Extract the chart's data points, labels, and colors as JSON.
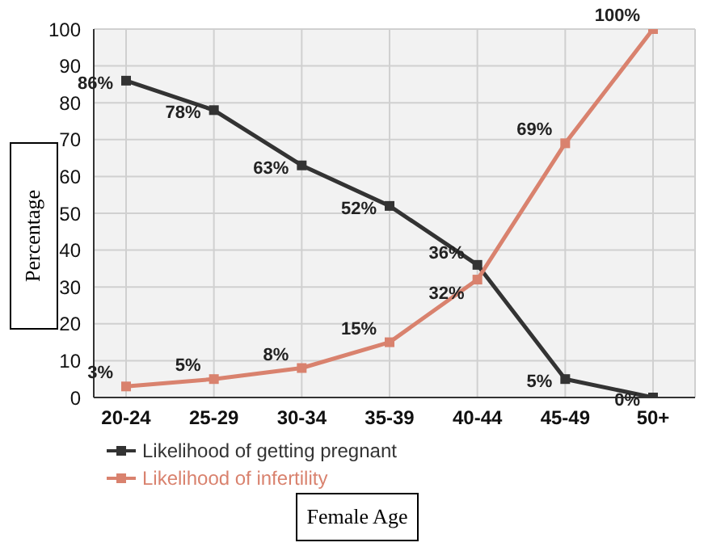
{
  "chart_data": {
    "type": "line",
    "xlabel": "Female Age",
    "ylabel": "Percentage",
    "categories": [
      "20-24",
      "25-29",
      "30-34",
      "35-39",
      "40-44",
      "45-49",
      "50+"
    ],
    "series": [
      {
        "name": "Likelihood of getting pregnant",
        "color": "#333333",
        "values": [
          86,
          78,
          63,
          52,
          36,
          5,
          0
        ],
        "value_labels": [
          "86%",
          "78%",
          "63%",
          "52%",
          "36%",
          "5%",
          "0%"
        ]
      },
      {
        "name": "Likelihood of infertility",
        "color": "#d9826e",
        "values": [
          3,
          5,
          8,
          15,
          32,
          69,
          100
        ],
        "value_labels": [
          "3%",
          "5%",
          "8%",
          "15%",
          "32%",
          "69%",
          "100%"
        ]
      }
    ],
    "ylim": [
      0,
      100
    ],
    "yticks": [
      0,
      10,
      20,
      30,
      40,
      50,
      60,
      70,
      80,
      90,
      100
    ],
    "grid": true,
    "legend": "bottom",
    "marker": "square",
    "line_style": "solid"
  }
}
